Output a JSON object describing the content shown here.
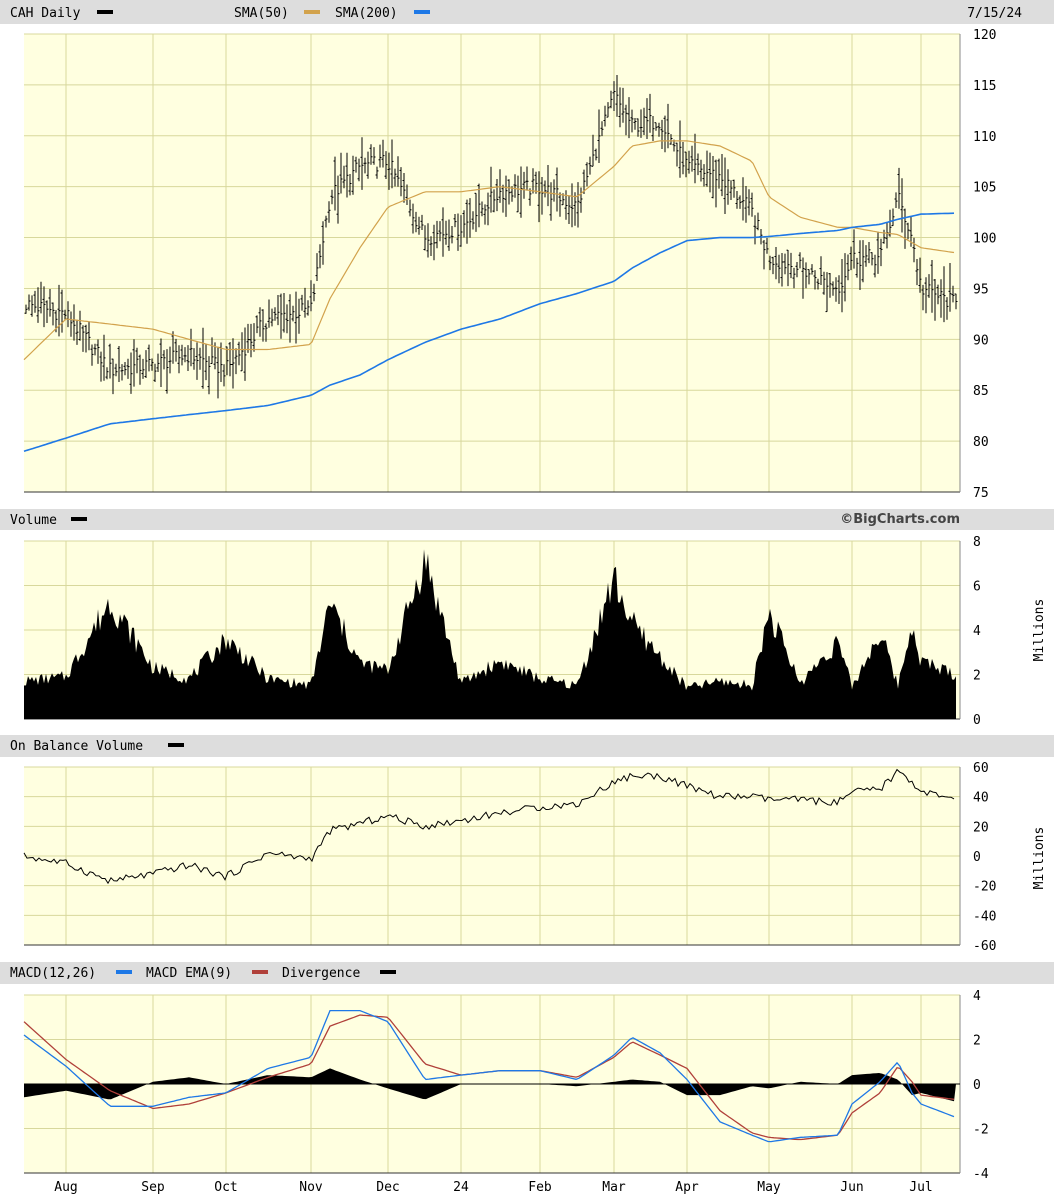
{
  "header": {
    "symbol_label": "CAH Daily",
    "sma50_label": "SMA(50)",
    "sma200_label": "SMA(200)",
    "date": "7/15/24",
    "watermark": "©BigCharts.com"
  },
  "colors": {
    "plot_bg": "#ffffe0",
    "grid": "#d8d89c",
    "header_bg": "#dddddd",
    "price_bars": "#000000",
    "sma50": "#d2a24c",
    "sma200": "#1e78e6",
    "macd": "#1e78e6",
    "macd_ema": "#b0403a",
    "divergence": "#000000"
  },
  "x_axis": {
    "months": [
      "Aug",
      "Sep",
      "Oct",
      "Nov",
      "Dec",
      "24",
      "Feb",
      "Mar",
      "Apr",
      "May",
      "Jun",
      "Jul"
    ]
  },
  "panels": {
    "volume": {
      "title": "Volume",
      "unit": "Millions",
      "ticks": [
        "0",
        "2",
        "4",
        "6",
        "8"
      ]
    },
    "obv": {
      "title": "On Balance Volume",
      "unit": "Millions",
      "ticks": [
        "-60",
        "-40",
        "-20",
        "0",
        "20",
        "40",
        "60"
      ]
    },
    "macd": {
      "title": "MACD(12,26)",
      "ema_label": "MACD EMA(9)",
      "div_label": "Divergence",
      "ticks": [
        "-4",
        "-2",
        "0",
        "2",
        "4"
      ]
    }
  },
  "chart_data": [
    {
      "type": "ohlc",
      "title": "CAH Daily",
      "y_ticks": [
        "75",
        "80",
        "85",
        "90",
        "95",
        "100",
        "105",
        "110",
        "115",
        "120"
      ],
      "ylim": [
        75,
        120
      ],
      "x": [
        "Jul-24",
        "Aug",
        "Aug-22",
        "Sep",
        "Sep-15",
        "Oct",
        "Oct-16",
        "Nov",
        "Nov-7",
        "Nov-17",
        "Dec",
        "Dec-20",
        "24",
        "Jan-15",
        "Feb",
        "Feb-15",
        "Mar",
        "Mar-12",
        "Mar-25",
        "Apr",
        "Apr-15",
        "Apr-26",
        "May",
        "May-10",
        "May-24",
        "Jun",
        "Jun-12",
        "Jun-20",
        "Jun-28",
        "Jul",
        "Jul-15"
      ],
      "close": [
        93.5,
        92.5,
        87,
        87.5,
        88.5,
        87,
        92,
        93,
        104,
        107,
        107.5,
        100,
        101,
        104.5,
        105,
        103,
        114,
        111,
        111.5,
        107,
        106,
        102.5,
        98,
        97,
        95,
        98,
        98,
        104,
        100,
        95,
        93.5
      ],
      "series": [
        {
          "name": "SMA(50)",
          "values": [
            88,
            92,
            91.5,
            91,
            90,
            89,
            89,
            89.5,
            94,
            99,
            103,
            104.5,
            104.5,
            105,
            104.5,
            104,
            107,
            109,
            109.5,
            109.5,
            109,
            107.5,
            104,
            102,
            101,
            101,
            100.5,
            100.3,
            99.5,
            99,
            98.5
          ]
        },
        {
          "name": "SMA(200)",
          "values": [
            79,
            80.3,
            81.7,
            82.2,
            82.6,
            83,
            83.5,
            84.5,
            85.5,
            86.5,
            88,
            89.7,
            91,
            92,
            93.5,
            94.5,
            95.7,
            97,
            98.5,
            99.7,
            100,
            100,
            100.1,
            100.4,
            100.7,
            101,
            101.3,
            101.8,
            102.1,
            102.3,
            102.4
          ]
        }
      ]
    },
    {
      "type": "area",
      "title": "Volume",
      "ylabel": "Millions",
      "ylim": [
        0,
        8
      ],
      "x": [
        "Jul-24",
        "Aug",
        "Aug-22",
        "Sep",
        "Sep-15",
        "Oct",
        "Oct-16",
        "Nov",
        "Nov-7",
        "Nov-17",
        "Dec",
        "Dec-20",
        "24",
        "Jan-15",
        "Feb",
        "Feb-15",
        "Mar",
        "Mar-12",
        "Mar-25",
        "Apr",
        "Apr-15",
        "Apr-26",
        "May",
        "May-10",
        "May-24",
        "Jun",
        "Jun-12",
        "Jun-20",
        "Jun-28",
        "Jul",
        "Jul-15"
      ],
      "values": [
        1.7,
        1.9,
        5.3,
        2.3,
        1.8,
        3.6,
        1.8,
        1.5,
        5.2,
        2.5,
        2.2,
        7.2,
        1.6,
        2.6,
        1.8,
        1.5,
        6.3,
        4.3,
        2.8,
        1.4,
        1.7,
        1.5,
        4.8,
        1.6,
        3.5,
        1.4,
        3.9,
        1.5,
        4.3,
        2.6,
        2.0
      ]
    },
    {
      "type": "line",
      "title": "On Balance Volume",
      "ylabel": "Millions",
      "ylim": [
        -60,
        60
      ],
      "x": [
        "Jul-24",
        "Aug",
        "Aug-22",
        "Sep",
        "Sep-15",
        "Oct",
        "Oct-16",
        "Nov",
        "Nov-7",
        "Nov-17",
        "Dec",
        "Dec-20",
        "24",
        "Jan-15",
        "Feb",
        "Feb-15",
        "Mar",
        "Mar-12",
        "Mar-25",
        "Apr",
        "Apr-15",
        "Apr-26",
        "May",
        "May-10",
        "May-24",
        "Jun",
        "Jun-12",
        "Jun-20",
        "Jun-28",
        "Jul",
        "Jul-15"
      ],
      "values": [
        0,
        -5,
        -17,
        -12,
        -6,
        -14,
        2,
        -2,
        17,
        22,
        27,
        20,
        24,
        29,
        33,
        35,
        50,
        54,
        54,
        47,
        40,
        40,
        38,
        38,
        36,
        43,
        45,
        57,
        50,
        44,
        37
      ]
    },
    {
      "type": "line",
      "title": "MACD(12,26)",
      "ylim": [
        -4,
        4
      ],
      "x": [
        "Jul-24",
        "Aug",
        "Aug-22",
        "Sep",
        "Sep-15",
        "Oct",
        "Oct-16",
        "Nov",
        "Nov-7",
        "Nov-17",
        "Dec",
        "Dec-20",
        "24",
        "Jan-15",
        "Feb",
        "Feb-15",
        "Mar",
        "Mar-12",
        "Mar-25",
        "Apr",
        "Apr-15",
        "Apr-26",
        "May",
        "May-10",
        "May-24",
        "Jun",
        "Jun-12",
        "Jun-20",
        "Jun-28",
        "Jul",
        "Jul-15"
      ],
      "series": [
        {
          "name": "MACD(12,26)",
          "values": [
            2.2,
            0.8,
            -1.0,
            -1.0,
            -0.6,
            -0.4,
            0.7,
            1.2,
            3.3,
            3.3,
            2.8,
            0.2,
            0.4,
            0.6,
            0.6,
            0.2,
            1.3,
            2.1,
            1.4,
            0.2,
            -1.7,
            -2.3,
            -2.6,
            -2.4,
            -2.3,
            -0.9,
            0.1,
            1.0,
            -0.4,
            -0.9,
            -1.5
          ]
        },
        {
          "name": "MACD EMA(9)",
          "values": [
            2.8,
            1.1,
            -0.3,
            -1.1,
            -0.9,
            -0.4,
            0.3,
            0.9,
            2.6,
            3.1,
            3.0,
            0.9,
            0.4,
            0.6,
            0.6,
            0.3,
            1.2,
            1.9,
            1.3,
            0.7,
            -1.2,
            -2.2,
            -2.4,
            -2.5,
            -2.3,
            -1.3,
            -0.4,
            0.8,
            0.1,
            -0.5,
            -0.7
          ]
        },
        {
          "name": "Divergence",
          "values": [
            -0.6,
            -0.3,
            -0.7,
            0.1,
            0.3,
            0.0,
            0.4,
            0.3,
            0.7,
            0.2,
            -0.2,
            -0.7,
            0.0,
            0.0,
            0.0,
            -0.1,
            0.1,
            0.2,
            0.1,
            -0.5,
            -0.5,
            -0.1,
            -0.2,
            0.1,
            0.0,
            0.4,
            0.5,
            0.2,
            -0.5,
            -0.4,
            -0.8
          ]
        }
      ]
    }
  ]
}
